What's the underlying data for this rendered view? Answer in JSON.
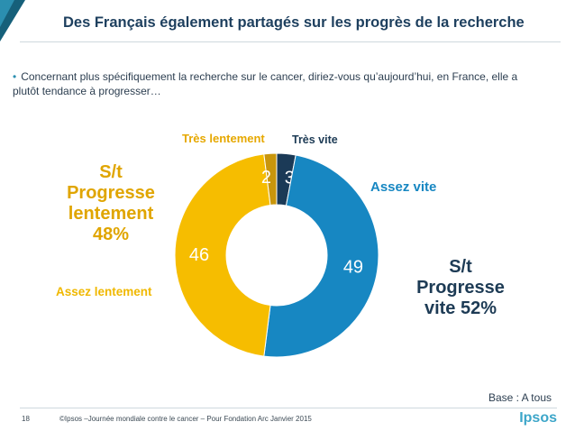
{
  "header": {
    "title": "Des Français également partagés sur les progrès de la recherche"
  },
  "intro": {
    "bullet": "•",
    "text": "Concernant plus spécifiquement la recherche sur le cancer, diriez-vous qu’aujourd’hui, en France, elle a\nplutôt tendance à progresser…"
  },
  "chart_data": {
    "type": "pie",
    "style": "donut",
    "start": "top",
    "direction": "clockwise",
    "unit": "%",
    "slices": [
      {
        "label": "Très vite",
        "value": 3,
        "color": "#1b3a57"
      },
      {
        "label": "Assez vite",
        "value": 49,
        "color": "#1787c2"
      },
      {
        "label": "Assez lentement",
        "value": 46,
        "color": "#f6bd00"
      },
      {
        "label": "Très lentement",
        "value": 2,
        "color": "#c9960c"
      }
    ],
    "groups": [
      {
        "lines": [
          "S/t",
          "Progresse",
          "lentement",
          "48%"
        ]
      },
      {
        "lines": [
          "S/t",
          "Progresse",
          "vite 52%"
        ]
      }
    ]
  },
  "footer": {
    "base_note": "Base : A tous",
    "page_number": "18",
    "credit": "©Ipsos –Journée mondiale contre le cancer – Pour Fondation Arc  Janvier 2015",
    "logo": "Ipsos"
  },
  "colors": {
    "title": "#1d3f5e",
    "accent": "#2b8fb0"
  }
}
